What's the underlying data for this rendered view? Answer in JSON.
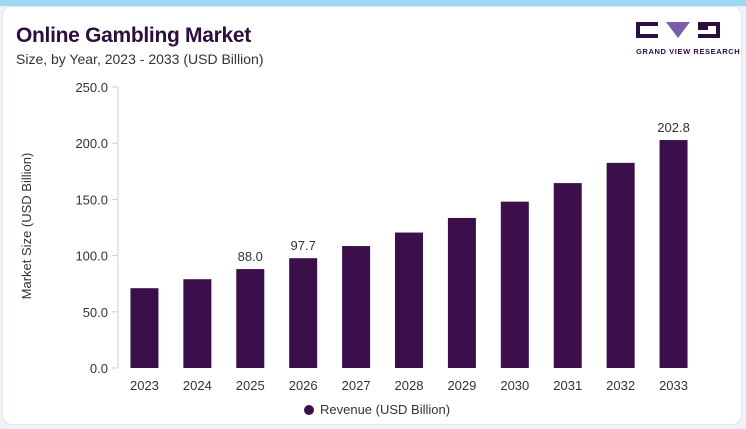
{
  "header": {
    "title": "Online Gambling Market",
    "subtitle": "Size, by Year, 2023 - 2033 (USD Billion)"
  },
  "logo": {
    "text": "GRAND VIEW RESEARCH",
    "icon": "gvr-logo-icon"
  },
  "colors": {
    "bar": "#3a0f4a",
    "title": "#2d0f3d",
    "accent_top": "#9fd8f2",
    "logo_accent": "#7b5ea7"
  },
  "chart_data": {
    "type": "bar",
    "title": "Online Gambling Market",
    "subtitle": "Size, by Year, 2023 - 2033 (USD Billion)",
    "xlabel": "",
    "ylabel": "Market Size (USD Billion)",
    "categories": [
      "2023",
      "2024",
      "2025",
      "2026",
      "2027",
      "2028",
      "2029",
      "2030",
      "2031",
      "2032",
      "2033"
    ],
    "series": [
      {
        "name": "Revenue (USD Billion)",
        "values": [
          71.0,
          79.0,
          88.0,
          97.7,
          108.5,
          120.5,
          133.5,
          148.0,
          164.5,
          182.5,
          202.8
        ]
      }
    ],
    "data_labels": [
      {
        "category": "2025",
        "text": "88.0"
      },
      {
        "category": "2026",
        "text": "97.7"
      },
      {
        "category": "2033",
        "text": "202.8"
      }
    ],
    "ylim": [
      0,
      250
    ],
    "yticks": [
      "0.0",
      "50.0",
      "100.0",
      "150.0",
      "200.0",
      "250.0"
    ],
    "grid": false,
    "legend": "bottom-center"
  }
}
